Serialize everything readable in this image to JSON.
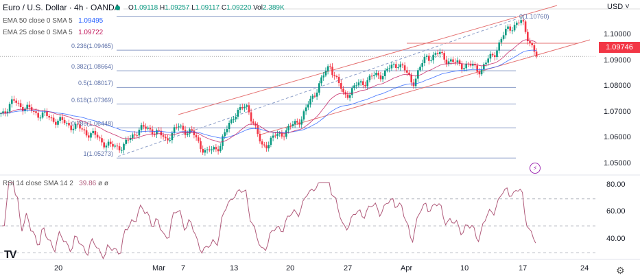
{
  "header": {
    "symbol_title": "Euro / U.S. Dollar · 4h · OANDA",
    "ohlc": {
      "o_label": "O",
      "o": "1.09118",
      "h_label": "H",
      "h": "1.09257",
      "l_label": "L",
      "l": "1.09117",
      "c_label": "C",
      "c": "1.09220",
      "vol_label": "Vol",
      "vol": "2.389K"
    },
    "status_color": "#089981"
  },
  "indicators": {
    "ema50": {
      "label": "EMA 50 close 0 SMA 5",
      "value": "1.09495",
      "color": "#2962ff"
    },
    "ema25": {
      "label": "EMA 25 close 0 SMA 5",
      "value": "1.09722",
      "color": "#c2185b"
    },
    "rsi": {
      "label": "RSI 14 close SMA 14 2",
      "value": "39.86",
      "extra1": "ø",
      "extra2": "ø",
      "color": "#b05a7a"
    }
  },
  "price_axis": {
    "currency": "USD",
    "ticks": [
      "1.10000",
      "1.09000",
      "1.08000",
      "1.07000",
      "1.06000",
      "1.05000"
    ],
    "current_price": "1.09746",
    "current_color": "#f23645"
  },
  "rsi_axis": {
    "ticks": [
      "80.00",
      "60.00",
      "40.00"
    ]
  },
  "time_axis": {
    "ticks": [
      "20",
      "Mar",
      "7",
      "13",
      "20",
      "27",
      "Apr",
      "10",
      "17",
      "24"
    ]
  },
  "fibonacci": [
    {
      "label": "0(1.10760)",
      "price": 1.1076
    },
    {
      "label": "0.236(1.09465)",
      "price": 1.09465
    },
    {
      "label": "0.382(1.08664)",
      "price": 1.08664
    },
    {
      "label": "0.5(1.08017)",
      "price": 1.08017
    },
    {
      "label": "0.618(1.07369)",
      "price": 1.07369
    },
    {
      "label": "0.786(1.06448)",
      "price": 1.06448
    },
    {
      "label": "1(1.05273)",
      "price": 1.05273
    }
  ],
  "chart_data": {
    "type": "candlestick",
    "approx_closes": [
      1.0701,
      1.0747,
      1.0715,
      1.0695,
      1.0675,
      1.0657,
      1.0635,
      1.0608,
      1.057,
      1.0575,
      1.064,
      1.064,
      1.06,
      1.065,
      1.062,
      1.0545,
      1.058,
      1.07,
      1.0728,
      1.057,
      1.061,
      1.064,
      1.069,
      1.0795,
      1.089,
      1.0768,
      1.081,
      1.084,
      1.086,
      1.09,
      1.082,
      1.092,
      1.093,
      1.0895,
      1.0888,
      1.087,
      1.094,
      1.1035,
      1.1055,
      1.0922
    ],
    "up_color": "#089981",
    "down_color": "#f23645"
  },
  "icons": {
    "logo": "tradingview-logo",
    "settings": "gear-icon",
    "alert": "lightning-icon"
  },
  "logo_text": "TV"
}
